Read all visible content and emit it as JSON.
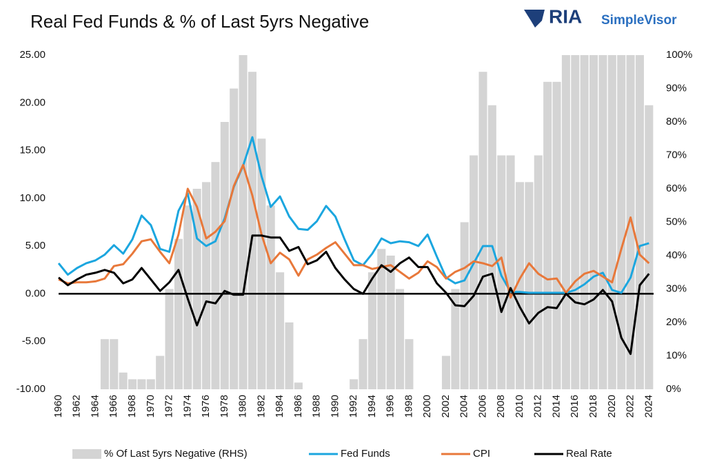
{
  "header": {
    "brand": "RIA",
    "product": "SimpleVisor"
  },
  "chart_data": {
    "type": "line",
    "title": "Real Fed Funds & % of Last 5yrs Negative",
    "x": [
      1960,
      1961,
      1962,
      1963,
      1964,
      1965,
      1966,
      1967,
      1968,
      1969,
      1970,
      1971,
      1972,
      1973,
      1974,
      1975,
      1976,
      1977,
      1978,
      1979,
      1980,
      1981,
      1982,
      1983,
      1984,
      1985,
      1986,
      1987,
      1988,
      1989,
      1990,
      1991,
      1992,
      1993,
      1994,
      1995,
      1996,
      1997,
      1998,
      1999,
      2000,
      2001,
      2002,
      2003,
      2004,
      2005,
      2006,
      2007,
      2008,
      2009,
      2010,
      2011,
      2012,
      2013,
      2014,
      2015,
      2016,
      2017,
      2018,
      2019,
      2020,
      2021,
      2022,
      2023,
      2024
    ],
    "xlim": [
      1960,
      2024.5
    ],
    "xticks": [
      1960,
      1962,
      1964,
      1966,
      1968,
      1970,
      1972,
      1974,
      1976,
      1978,
      1980,
      1982,
      1984,
      1986,
      1988,
      1990,
      1992,
      1994,
      1996,
      1998,
      2000,
      2002,
      2004,
      2006,
      2008,
      2010,
      2012,
      2014,
      2016,
      2018,
      2020,
      2022,
      2024
    ],
    "ylim": [
      -10,
      25
    ],
    "yticks": [
      {
        "value": -10,
        "label": "-10.00"
      },
      {
        "value": -5,
        "label": "-5.00"
      },
      {
        "value": 0,
        "label": "0.00"
      },
      {
        "value": 5,
        "label": "5.00"
      },
      {
        "value": 10,
        "label": "10.00"
      },
      {
        "value": 15,
        "label": "15.00"
      },
      {
        "value": 20,
        "label": "20.00"
      },
      {
        "value": 25,
        "label": "25.00"
      }
    ],
    "y2lim": [
      0,
      100
    ],
    "y2ticks": [
      {
        "value": 0,
        "label": "0%"
      },
      {
        "value": 10,
        "label": "10%"
      },
      {
        "value": 20,
        "label": "20%"
      },
      {
        "value": 30,
        "label": "30%"
      },
      {
        "value": 40,
        "label": "40%"
      },
      {
        "value": 50,
        "label": "50%"
      },
      {
        "value": 60,
        "label": "60%"
      },
      {
        "value": 70,
        "label": "70%"
      },
      {
        "value": 80,
        "label": "80%"
      },
      {
        "value": 90,
        "label": "90%"
      },
      {
        "value": 100,
        "label": "100%"
      }
    ],
    "zero_line": true,
    "series": [
      {
        "name": "% Of Last 5yrs Negative (RHS)",
        "type": "bar",
        "axis": "y2",
        "color": "#d4d4d4",
        "values": [
          0,
          0,
          0,
          0,
          0,
          15,
          15,
          5,
          3,
          3,
          3,
          10,
          30,
          45,
          55,
          60,
          62,
          68,
          80,
          90,
          100,
          95,
          75,
          55,
          35,
          20,
          2,
          0,
          0,
          0,
          0,
          0,
          3,
          15,
          35,
          42,
          40,
          30,
          15,
          0,
          0,
          0,
          10,
          30,
          50,
          70,
          95,
          85,
          70,
          70,
          62,
          62,
          70,
          92,
          92,
          100,
          100,
          100,
          100,
          100,
          100,
          100,
          100,
          100,
          85
        ]
      },
      {
        "name": "Fed Funds",
        "color": "#1ba6df",
        "values": [
          3.2,
          2.0,
          2.7,
          3.2,
          3.5,
          4.1,
          5.1,
          4.2,
          5.7,
          8.2,
          7.2,
          4.7,
          4.4,
          8.7,
          10.5,
          5.8,
          5.0,
          5.5,
          7.9,
          11.2,
          13.4,
          16.4,
          12.3,
          9.1,
          10.2,
          8.1,
          6.8,
          6.7,
          7.6,
          9.2,
          8.1,
          5.7,
          3.5,
          3.0,
          4.2,
          5.8,
          5.3,
          5.5,
          5.4,
          5.0,
          6.2,
          3.9,
          1.7,
          1.1,
          1.4,
          3.2,
          5.0,
          5.0,
          1.9,
          0.2,
          0.2,
          0.1,
          0.1,
          0.1,
          0.1,
          0.1,
          0.4,
          1.0,
          1.8,
          2.2,
          0.4,
          0.1,
          1.7,
          5.0,
          5.3
        ]
      },
      {
        "name": "CPI",
        "color": "#e8783a",
        "values": [
          1.5,
          1.1,
          1.2,
          1.2,
          1.3,
          1.6,
          2.9,
          3.1,
          4.2,
          5.5,
          5.7,
          4.4,
          3.2,
          6.2,
          11.0,
          9.1,
          5.8,
          6.5,
          7.6,
          11.3,
          13.5,
          10.3,
          6.2,
          3.2,
          4.3,
          3.6,
          1.9,
          3.6,
          4.1,
          4.8,
          5.4,
          4.2,
          3.0,
          3.0,
          2.6,
          2.8,
          3.0,
          2.3,
          1.6,
          2.2,
          3.4,
          2.8,
          1.6,
          2.3,
          2.7,
          3.4,
          3.2,
          2.9,
          3.8,
          -0.4,
          1.6,
          3.2,
          2.1,
          1.5,
          1.6,
          0.1,
          1.3,
          2.1,
          2.4,
          1.8,
          1.2,
          4.7,
          8.0,
          4.1,
          3.2
        ]
      },
      {
        "name": "Real Rate",
        "color": "#000000",
        "values": [
          1.7,
          0.9,
          1.5,
          2.0,
          2.2,
          2.5,
          2.2,
          1.1,
          1.5,
          2.7,
          1.5,
          0.3,
          1.2,
          2.5,
          -0.5,
          -3.3,
          -0.8,
          -1.0,
          0.3,
          -0.1,
          -0.1,
          6.1,
          6.1,
          5.9,
          5.9,
          4.5,
          4.9,
          3.1,
          3.5,
          4.4,
          2.7,
          1.5,
          0.5,
          0.0,
          1.6,
          3.0,
          2.3,
          3.2,
          3.8,
          2.8,
          2.8,
          1.1,
          0.1,
          -1.2,
          -1.3,
          -0.2,
          1.8,
          2.1,
          -1.9,
          0.6,
          -1.4,
          -3.1,
          -2.0,
          -1.4,
          -1.5,
          0.0,
          -0.9,
          -1.1,
          -0.6,
          0.4,
          -0.8,
          -4.6,
          -6.3,
          0.9,
          2.1
        ]
      }
    ]
  }
}
